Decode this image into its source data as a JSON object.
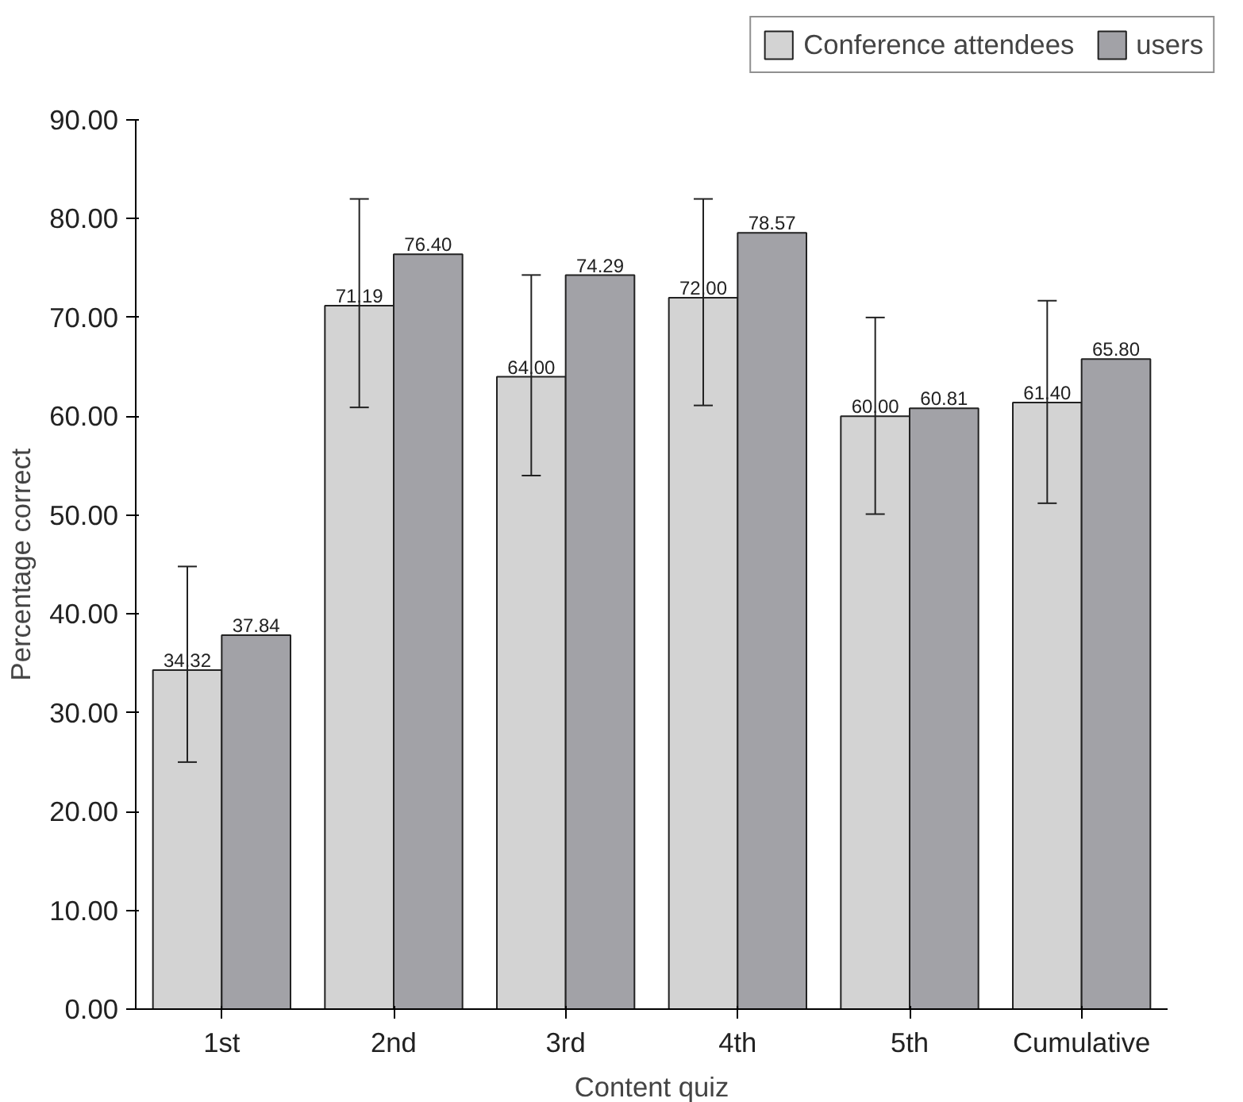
{
  "chart_data": {
    "type": "bar",
    "xlabel": "Content quiz",
    "ylabel": "Percentage correct",
    "categories": [
      "1st",
      "2nd",
      "3rd",
      "4th",
      "5th",
      "Cumulative"
    ],
    "series": [
      {
        "name": "Conference attendees",
        "color": "#d3d3d3",
        "values": [
          34.32,
          71.19,
          64.0,
          72.0,
          60.0,
          61.4
        ],
        "value_labels": [
          "34.32",
          "71.19",
          "64.00",
          "72.00",
          "60.00",
          "61.40"
        ],
        "errors": [
          [
            25.0,
            44.8
          ],
          [
            60.9,
            82.0
          ],
          [
            54.0,
            74.3
          ],
          [
            61.1,
            82.0
          ],
          [
            50.1,
            70.0
          ],
          [
            51.2,
            71.7
          ]
        ]
      },
      {
        "name": "users",
        "color": "#a2a2a7",
        "values": [
          37.84,
          76.4,
          74.29,
          78.57,
          60.81,
          65.8
        ],
        "value_labels": [
          "37.84",
          "76.40",
          "74.29",
          "78.57",
          "60.81",
          "65.80"
        ]
      }
    ],
    "ylim": [
      0,
      90
    ],
    "yticks": [
      {
        "value": 0,
        "label": "0.00"
      },
      {
        "value": 10,
        "label": "10.00"
      },
      {
        "value": 20,
        "label": "20.00"
      },
      {
        "value": 30,
        "label": "30.00"
      },
      {
        "value": 40,
        "label": "40.00"
      },
      {
        "value": 50,
        "label": "50.00"
      },
      {
        "value": 60,
        "label": "60.00"
      },
      {
        "value": 70,
        "label": "70.00"
      },
      {
        "value": 80,
        "label": "80.00"
      },
      {
        "value": 90,
        "label": "90.00"
      }
    ],
    "grid": false,
    "legend": "top right"
  }
}
